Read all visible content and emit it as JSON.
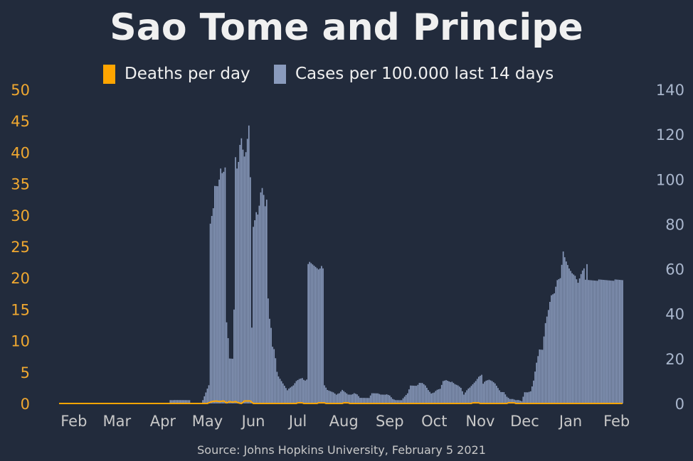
{
  "chart_data": {
    "type": "bar",
    "title": "Sao Tome and Principe",
    "source": "Source: Johns Hopkins University, February 5 2021",
    "legend_position": "top-center",
    "colors": {
      "background": "#222b3c",
      "deaths": "#ffa500",
      "cases": "#8a9bbd",
      "left_axis": "#f0a830",
      "right_axis": "#a9b6cc",
      "x_axis": "#c8c8c8"
    },
    "left_axis": {
      "ticks": [
        0,
        5,
        10,
        15,
        20,
        25,
        30,
        35,
        40,
        45,
        50
      ],
      "ylim": [
        0,
        50
      ]
    },
    "right_axis": {
      "ticks": [
        0,
        20,
        40,
        60,
        80,
        100,
        120,
        140
      ],
      "ylim": [
        0,
        140
      ]
    },
    "x_ticks": [
      "Feb",
      "Mar",
      "Apr",
      "May",
      "Jun",
      "Jul",
      "Aug",
      "Sep",
      "Oct",
      "Nov",
      "Dec",
      "Jan",
      "Feb"
    ],
    "x_start_date": "2020-01-22",
    "x_end_date": "2021-02-05",
    "series": [
      {
        "name": "Deaths per day",
        "axis": "left",
        "type": "line",
        "points": [
          [
            "2020-01-22",
            0
          ],
          [
            "2020-05-01",
            0
          ],
          [
            "2020-05-04",
            0.3
          ],
          [
            "2020-05-07",
            0.4
          ],
          [
            "2020-05-09",
            0.3
          ],
          [
            "2020-05-12",
            0.4
          ],
          [
            "2020-05-14",
            0.1
          ],
          [
            "2020-05-16",
            0.3
          ],
          [
            "2020-05-18",
            0.2
          ],
          [
            "2020-05-20",
            0.3
          ],
          [
            "2020-05-22",
            0.1
          ],
          [
            "2020-05-24",
            0
          ],
          [
            "2020-05-26",
            0.4
          ],
          [
            "2020-05-30",
            0.4
          ],
          [
            "2020-06-01",
            0
          ],
          [
            "2020-06-30",
            0
          ],
          [
            "2020-07-01",
            0.1
          ],
          [
            "2020-07-04",
            0.1
          ],
          [
            "2020-07-05",
            0
          ],
          [
            "2020-07-14",
            0
          ],
          [
            "2020-07-15",
            0.1
          ],
          [
            "2020-07-19",
            0.1
          ],
          [
            "2020-07-20",
            0
          ],
          [
            "2020-07-31",
            0
          ],
          [
            "2020-08-01",
            0.1
          ],
          [
            "2020-08-04",
            0.1
          ],
          [
            "2020-08-05",
            0
          ],
          [
            "2020-10-26",
            0
          ],
          [
            "2020-10-27",
            0.1
          ],
          [
            "2020-10-31",
            0.1
          ],
          [
            "2020-11-01",
            0
          ],
          [
            "2020-11-19",
            0
          ],
          [
            "2020-11-20",
            0.1
          ],
          [
            "2020-11-24",
            0.1
          ],
          [
            "2020-11-25",
            0
          ],
          [
            "2021-02-05",
            0
          ]
        ]
      },
      {
        "name": "Cases per 100.000 last 14 days",
        "axis": "right",
        "type": "bar",
        "points": [
          [
            "2020-01-22",
            0
          ],
          [
            "2020-04-05",
            0
          ],
          [
            "2020-04-06",
            1.5
          ],
          [
            "2020-04-19",
            1.5
          ],
          [
            "2020-04-20",
            0
          ],
          [
            "2020-04-27",
            0
          ],
          [
            "2020-04-28",
            1.5
          ],
          [
            "2020-04-30",
            5
          ],
          [
            "2020-05-02",
            8
          ],
          [
            "2020-05-03",
            80
          ],
          [
            "2020-05-05",
            87
          ],
          [
            "2020-05-06",
            97
          ],
          [
            "2020-05-08",
            97
          ],
          [
            "2020-05-09",
            100
          ],
          [
            "2020-05-10",
            105
          ],
          [
            "2020-05-11",
            103
          ],
          [
            "2020-05-12",
            103
          ],
          [
            "2020-05-13",
            105
          ],
          [
            "2020-05-14",
            36
          ],
          [
            "2020-05-15",
            29
          ],
          [
            "2020-05-16",
            20
          ],
          [
            "2020-05-18",
            20
          ],
          [
            "2020-05-19",
            42
          ],
          [
            "2020-05-20",
            110
          ],
          [
            "2020-05-21",
            105
          ],
          [
            "2020-05-22",
            108
          ],
          [
            "2020-05-23",
            115
          ],
          [
            "2020-05-24",
            118
          ],
          [
            "2020-05-25",
            113
          ],
          [
            "2020-05-26",
            110
          ],
          [
            "2020-05-27",
            112
          ],
          [
            "2020-05-28",
            118
          ],
          [
            "2020-05-29",
            124
          ],
          [
            "2020-05-30",
            101
          ],
          [
            "2020-05-31",
            34
          ],
          [
            "2020-06-01",
            79
          ],
          [
            "2020-06-02",
            82
          ],
          [
            "2020-06-03",
            85
          ],
          [
            "2020-06-04",
            84
          ],
          [
            "2020-06-05",
            88
          ],
          [
            "2020-06-06",
            94
          ],
          [
            "2020-06-07",
            96
          ],
          [
            "2020-06-08",
            93
          ],
          [
            "2020-06-09",
            88
          ],
          [
            "2020-06-10",
            91
          ],
          [
            "2020-06-11",
            47
          ],
          [
            "2020-06-12",
            38
          ],
          [
            "2020-06-13",
            34
          ],
          [
            "2020-06-14",
            25
          ],
          [
            "2020-06-15",
            24
          ],
          [
            "2020-06-16",
            20
          ],
          [
            "2020-06-17",
            14
          ],
          [
            "2020-06-18",
            12
          ],
          [
            "2020-06-20",
            10
          ],
          [
            "2020-06-22",
            8
          ],
          [
            "2020-06-24",
            6
          ],
          [
            "2020-06-26",
            7
          ],
          [
            "2020-06-28",
            8
          ],
          [
            "2020-06-30",
            10
          ],
          [
            "2020-07-02",
            11
          ],
          [
            "2020-07-04",
            11.5
          ],
          [
            "2020-07-06",
            10
          ],
          [
            "2020-07-07",
            10.5
          ],
          [
            "2020-07-08",
            62
          ],
          [
            "2020-07-09",
            63
          ],
          [
            "2020-07-11",
            62
          ],
          [
            "2020-07-13",
            61
          ],
          [
            "2020-07-15",
            60
          ],
          [
            "2020-07-17",
            61
          ],
          [
            "2020-07-18",
            60
          ],
          [
            "2020-07-19",
            8
          ],
          [
            "2020-07-21",
            6
          ],
          [
            "2020-07-23",
            5.5
          ],
          [
            "2020-07-25",
            5
          ],
          [
            "2020-07-27",
            4
          ],
          [
            "2020-07-29",
            4.5
          ],
          [
            "2020-07-31",
            6
          ],
          [
            "2020-08-02",
            5
          ],
          [
            "2020-08-04",
            4
          ],
          [
            "2020-08-06",
            4
          ],
          [
            "2020-08-08",
            4.5
          ],
          [
            "2020-08-10",
            4
          ],
          [
            "2020-08-12",
            2.5
          ],
          [
            "2020-08-14",
            2.5
          ],
          [
            "2020-08-16",
            2.5
          ],
          [
            "2020-08-18",
            2.5
          ],
          [
            "2020-08-20",
            4.5
          ],
          [
            "2020-08-22",
            4.5
          ],
          [
            "2020-08-24",
            4.5
          ],
          [
            "2020-08-26",
            4
          ],
          [
            "2020-08-28",
            4
          ],
          [
            "2020-08-30",
            4
          ],
          [
            "2020-09-01",
            3.5
          ],
          [
            "2020-09-03",
            2
          ],
          [
            "2020-09-05",
            1.5
          ],
          [
            "2020-09-07",
            1.5
          ],
          [
            "2020-09-09",
            1.5
          ],
          [
            "2020-09-11",
            3
          ],
          [
            "2020-09-13",
            4.5
          ],
          [
            "2020-09-15",
            8
          ],
          [
            "2020-09-17",
            8
          ],
          [
            "2020-09-19",
            8
          ],
          [
            "2020-09-21",
            9
          ],
          [
            "2020-09-23",
            9
          ],
          [
            "2020-09-25",
            8
          ],
          [
            "2020-09-27",
            6
          ],
          [
            "2020-09-29",
            4.5
          ],
          [
            "2020-10-01",
            5
          ],
          [
            "2020-10-03",
            6
          ],
          [
            "2020-10-05",
            6.5
          ],
          [
            "2020-10-07",
            10
          ],
          [
            "2020-10-09",
            10.5
          ],
          [
            "2020-10-11",
            10
          ],
          [
            "2020-10-13",
            9.5
          ],
          [
            "2020-10-15",
            8.5
          ],
          [
            "2020-10-17",
            8
          ],
          [
            "2020-10-19",
            7
          ],
          [
            "2020-10-21",
            4
          ],
          [
            "2020-10-23",
            6
          ],
          [
            "2020-10-25",
            7
          ],
          [
            "2020-10-27",
            8.5
          ],
          [
            "2020-10-29",
            10
          ],
          [
            "2020-10-31",
            12
          ],
          [
            "2020-11-02",
            13
          ],
          [
            "2020-11-03",
            9
          ],
          [
            "2020-11-05",
            10
          ],
          [
            "2020-11-07",
            10.5
          ],
          [
            "2020-11-09",
            10
          ],
          [
            "2020-11-11",
            9
          ],
          [
            "2020-11-13",
            7
          ],
          [
            "2020-11-15",
            5
          ],
          [
            "2020-11-17",
            5
          ],
          [
            "2020-11-19",
            3
          ],
          [
            "2020-11-21",
            2
          ],
          [
            "2020-11-23",
            2
          ],
          [
            "2020-11-25",
            1.5
          ],
          [
            "2020-11-27",
            1.5
          ],
          [
            "2020-11-29",
            1
          ],
          [
            "2020-12-01",
            5
          ],
          [
            "2020-12-03",
            5
          ],
          [
            "2020-12-05",
            5.5
          ],
          [
            "2020-12-07",
            10
          ],
          [
            "2020-12-09",
            18
          ],
          [
            "2020-12-11",
            24
          ],
          [
            "2020-12-13",
            24
          ],
          [
            "2020-12-15",
            36
          ],
          [
            "2020-12-17",
            42
          ],
          [
            "2020-12-19",
            48
          ],
          [
            "2020-12-21",
            49
          ],
          [
            "2020-12-23",
            55
          ],
          [
            "2020-12-25",
            56
          ],
          [
            "2020-12-27",
            68
          ],
          [
            "2020-12-29",
            63
          ],
          [
            "2020-12-31",
            60
          ],
          [
            "2021-01-02",
            58
          ],
          [
            "2021-01-04",
            57
          ],
          [
            "2021-01-06",
            54
          ],
          [
            "2021-01-08",
            58
          ],
          [
            "2021-01-10",
            60
          ],
          [
            "2021-01-11",
            55
          ],
          [
            "2021-01-12",
            62
          ],
          [
            "2021-01-13",
            55
          ]
        ]
      }
    ]
  },
  "legend": {
    "deaths_label": "Deaths per day",
    "cases_label": "Cases per 100.000 last 14 days"
  }
}
